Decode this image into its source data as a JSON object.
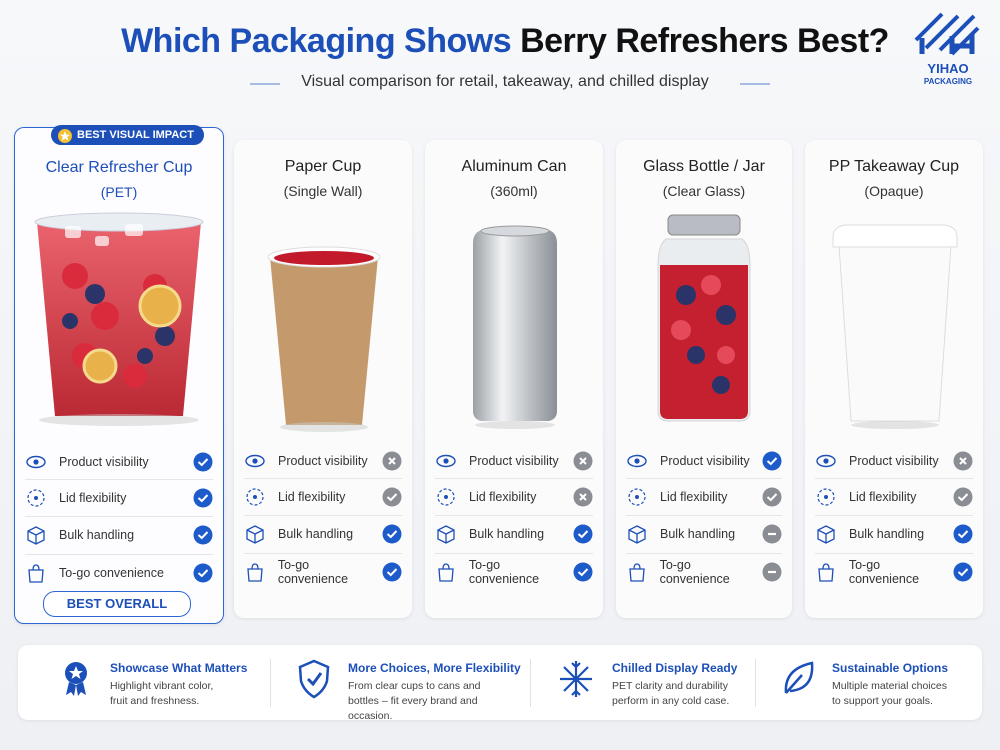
{
  "header": {
    "title_part1": "Which Packaging Shows",
    "title_part2": "Berry Refreshers Best?",
    "subtitle": "Visual comparison for retail, takeaway, and chilled display"
  },
  "logo": {
    "name": "YIHAO",
    "tagline": "PACKAGING"
  },
  "cards": [
    {
      "badge": "BEST VISUAL IMPACT",
      "name": "Clear Refresher Cup",
      "subtitle": "(PET)",
      "features": [
        "Product visibility",
        "Lid flexibility",
        "Bulk handling",
        "To-go convenience"
      ],
      "button": "BEST OVERALL"
    },
    {
      "name": "Paper Cup",
      "subtitle": "(Single Wall)",
      "features": [
        "Product visibility",
        "Lid flexibility",
        "Bulk handling",
        "To-go convenience"
      ]
    },
    {
      "name": "Aluminum Can",
      "subtitle": "(360ml)",
      "features": [
        "Product visibility",
        "Lid flexibility",
        "Bulk handling",
        "To-go convenience"
      ]
    },
    {
      "name": "Glass Bottle / Jar",
      "subtitle": "(Clear Glass)",
      "features": [
        "Product visibility",
        "Lid flexibility",
        "Bulk handling",
        "To-go convenience"
      ]
    },
    {
      "name": "PP Takeaway Cup",
      "subtitle": "(Opaque)",
      "features": [
        "Product visibility",
        "Lid flexibility",
        "Bulk handling",
        "To-go convenience"
      ]
    }
  ],
  "footer": [
    {
      "title": "Showcase What Matters",
      "text": "Highlight vibrant color, fruit and freshness."
    },
    {
      "title": "More Choices, More Flexibility",
      "text": "From clear cups to cans and bottles – fit every brand and occasion."
    },
    {
      "title": "Chilled Display Ready",
      "text": "PET clarity and durability perform in any cold case."
    },
    {
      "title": "Sustainable Options",
      "text": "Multiple material choices to support your goals."
    }
  ]
}
